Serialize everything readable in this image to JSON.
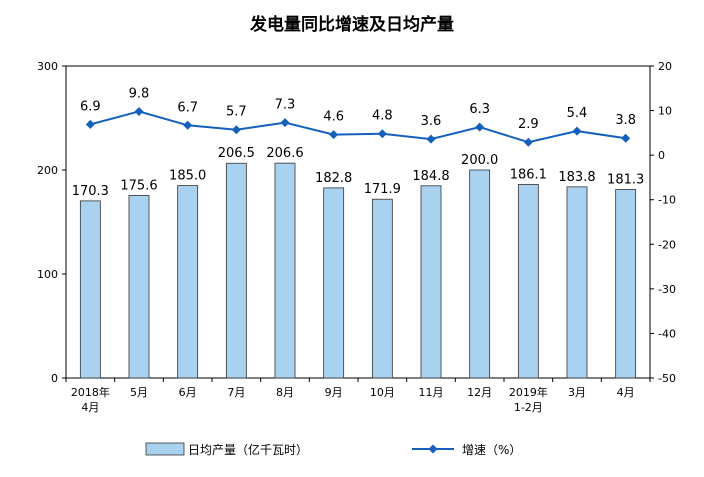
{
  "chart_data": {
    "type": "bar",
    "title": "发电量同比增速及日均产量",
    "categories": [
      [
        "2018年",
        "4月"
      ],
      [
        "5月"
      ],
      [
        "6月"
      ],
      [
        "7月"
      ],
      [
        "8月"
      ],
      [
        "9月"
      ],
      [
        "10月"
      ],
      [
        "11月"
      ],
      [
        "12月"
      ],
      [
        "2019年",
        "1-2月"
      ],
      [
        "3月"
      ],
      [
        "4月"
      ]
    ],
    "series": [
      {
        "name": "日均产量（亿千瓦时）",
        "type": "bar",
        "axis": "left",
        "color": "#a9d1f0",
        "values": [
          170.3,
          175.6,
          185.0,
          206.5,
          206.6,
          182.8,
          171.9,
          184.8,
          200.0,
          186.1,
          183.8,
          181.3
        ],
        "labels": [
          "170.3",
          "175.6",
          "185.0",
          "206.5",
          "206.6",
          "182.8",
          "171.9",
          "184.8",
          "200.0",
          "186.1",
          "183.8",
          "181.3"
        ]
      },
      {
        "name": "增速（%）",
        "type": "line",
        "axis": "right",
        "color": "#1560bd",
        "values": [
          6.9,
          9.8,
          6.7,
          5.7,
          7.3,
          4.6,
          4.8,
          3.6,
          6.3,
          2.9,
          5.4,
          3.8
        ],
        "labels": [
          "6.9",
          "9.8",
          "6.7",
          "5.7",
          "7.3",
          "4.6",
          "4.8",
          "3.6",
          "6.3",
          "2.9",
          "5.4",
          "3.8"
        ]
      }
    ],
    "y_left": {
      "min": 0,
      "max": 300,
      "ticks": [
        "0",
        "100",
        "200",
        "300"
      ]
    },
    "y_right": {
      "min": -50,
      "max": 20,
      "ticks": [
        "20",
        "10",
        "0",
        "-10",
        "-20",
        "-30",
        "-40",
        "-50"
      ]
    },
    "grid": false,
    "legend_position": "bottom"
  }
}
